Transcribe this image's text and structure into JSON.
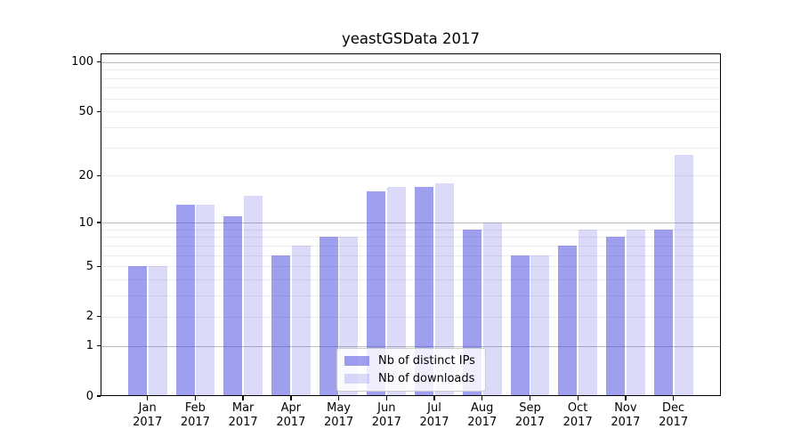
{
  "title": "yeastGSData 2017",
  "legend": {
    "items": [
      {
        "label": "Nb of distinct IPs"
      },
      {
        "label": "Nb of downloads"
      }
    ]
  },
  "y_axis": {
    "ticks": [
      {
        "label": "100",
        "value": 100
      },
      {
        "label": "50",
        "value": 50
      },
      {
        "label": "20",
        "value": 20
      },
      {
        "label": "10",
        "value": 10
      },
      {
        "label": "5",
        "value": 5
      },
      {
        "label": "2",
        "value": 2
      },
      {
        "label": "1",
        "value": 1
      },
      {
        "label": "0",
        "value": 0
      }
    ]
  },
  "x_axis": {
    "labels": [
      {
        "month": "Jan",
        "year": "2017"
      },
      {
        "month": "Feb",
        "year": "2017"
      },
      {
        "month": "Mar",
        "year": "2017"
      },
      {
        "month": "Apr",
        "year": "2017"
      },
      {
        "month": "May",
        "year": "2017"
      },
      {
        "month": "Jun",
        "year": "2017"
      },
      {
        "month": "Jul",
        "year": "2017"
      },
      {
        "month": "Aug",
        "year": "2017"
      },
      {
        "month": "Sep",
        "year": "2017"
      },
      {
        "month": "Oct",
        "year": "2017"
      },
      {
        "month": "Nov",
        "year": "2017"
      },
      {
        "month": "Dec",
        "year": "2017"
      }
    ]
  },
  "chart_data": {
    "type": "bar",
    "title": "yeastGSData 2017",
    "categories": [
      "Jan 2017",
      "Feb 2017",
      "Mar 2017",
      "Apr 2017",
      "May 2017",
      "Jun 2017",
      "Jul 2017",
      "Aug 2017",
      "Sep 2017",
      "Oct 2017",
      "Nov 2017",
      "Dec 2017"
    ],
    "series": [
      {
        "name": "Nb of distinct IPs",
        "color": "rgba(64,64,224,0.5)",
        "values": [
          5,
          13,
          11,
          6,
          8,
          16,
          17,
          9,
          6,
          7,
          8,
          9
        ]
      },
      {
        "name": "Nb of downloads",
        "color": "rgba(64,64,224,0.19)",
        "values": [
          5,
          13,
          15,
          7,
          8,
          17,
          18,
          10,
          6,
          9,
          9,
          27
        ]
      }
    ],
    "xlabel": "",
    "ylabel": "",
    "yscale": "log1p",
    "ylim": [
      0,
      113
    ],
    "y_major_tick_values": [
      0,
      1,
      2,
      5,
      10,
      20,
      50,
      100
    ],
    "grid_minor": [
      2,
      3,
      4,
      5,
      6,
      7,
      8,
      9,
      20,
      30,
      40,
      50,
      60,
      70,
      80,
      90
    ],
    "grid_major": [
      1,
      10,
      100
    ],
    "grid": "horizontal",
    "legend_position": "inside lower-center"
  }
}
